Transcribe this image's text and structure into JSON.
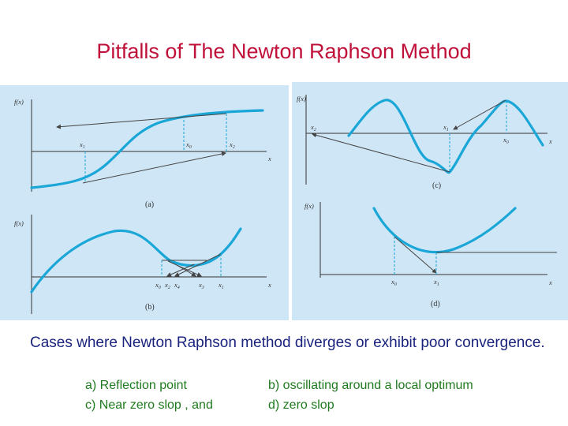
{
  "title": "Pitfalls of The Newton Raphson Method",
  "description": "Cases where Newton Raphson method diverges or exhibit poor convergence.",
  "cases": {
    "a": "a) Reflection point",
    "b": "b) oscillating around a local optimum",
    "c": "c) Near zero slop , and",
    "d": "d) zero slop"
  },
  "figure": {
    "a": {
      "ylabel": "f(x)",
      "xlabel": "x",
      "caption": "(a)",
      "points": [
        "x",
        "x",
        "x"
      ],
      "subs": [
        "1",
        "0",
        "2"
      ]
    },
    "b": {
      "ylabel": "f(x)",
      "xlabel": "x",
      "caption": "(b)",
      "points": [
        "x",
        "x",
        "x",
        "x",
        "x"
      ],
      "subs": [
        "0",
        "2",
        "4",
        "3",
        "1"
      ]
    },
    "c": {
      "ylabel": "f(x)",
      "xlabel": "x",
      "caption": "(c)",
      "points": [
        "x",
        "x",
        "x"
      ],
      "subs": [
        "2",
        "1",
        "0"
      ]
    },
    "d": {
      "ylabel": "f(x)",
      "xlabel": "x",
      "caption": "(d)",
      "points": [
        "x",
        "x"
      ],
      "subs": [
        "0",
        "1"
      ]
    }
  },
  "colors": {
    "title": "#c0113a",
    "description": "#1a237e",
    "cases": "#1f7a1f",
    "panel": "#cfe6f6",
    "curve": "#1aa7d8"
  }
}
